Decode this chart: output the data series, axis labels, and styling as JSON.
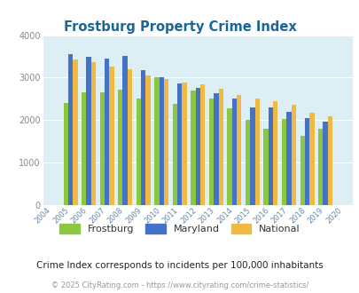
{
  "title": "Frostburg Property Crime Index",
  "plot_years": [
    2005,
    2006,
    2007,
    2008,
    2009,
    2010,
    2011,
    2012,
    2013,
    2014,
    2015,
    2016,
    2017,
    2018,
    2019
  ],
  "frostburg": [
    2400,
    2650,
    2650,
    2720,
    2500,
    3000,
    2380,
    2700,
    2500,
    2280,
    2000,
    1800,
    2020,
    1620,
    1800
  ],
  "maryland": [
    3550,
    3480,
    3440,
    3520,
    3180,
    3000,
    2860,
    2760,
    2640,
    2500,
    2300,
    2290,
    2200,
    2040,
    1970
  ],
  "national": [
    3430,
    3360,
    3270,
    3200,
    3050,
    2960,
    2890,
    2840,
    2730,
    2600,
    2500,
    2440,
    2370,
    2180,
    2090
  ],
  "all_years": [
    2004,
    2005,
    2006,
    2007,
    2008,
    2009,
    2010,
    2011,
    2012,
    2013,
    2014,
    2015,
    2016,
    2017,
    2018,
    2019,
    2020
  ],
  "frostburg_color": "#8dc63f",
  "maryland_color": "#4472c4",
  "national_color": "#f0b944",
  "bg_color": "#ddeef5",
  "title_color": "#1a6699",
  "subtitle": "Crime Index corresponds to incidents per 100,000 inhabitants",
  "footer": "© 2025 CityRating.com - https://www.cityrating.com/crime-statistics/",
  "ylim": [
    0,
    4000
  ],
  "yticks": [
    0,
    1000,
    2000,
    3000,
    4000
  ]
}
